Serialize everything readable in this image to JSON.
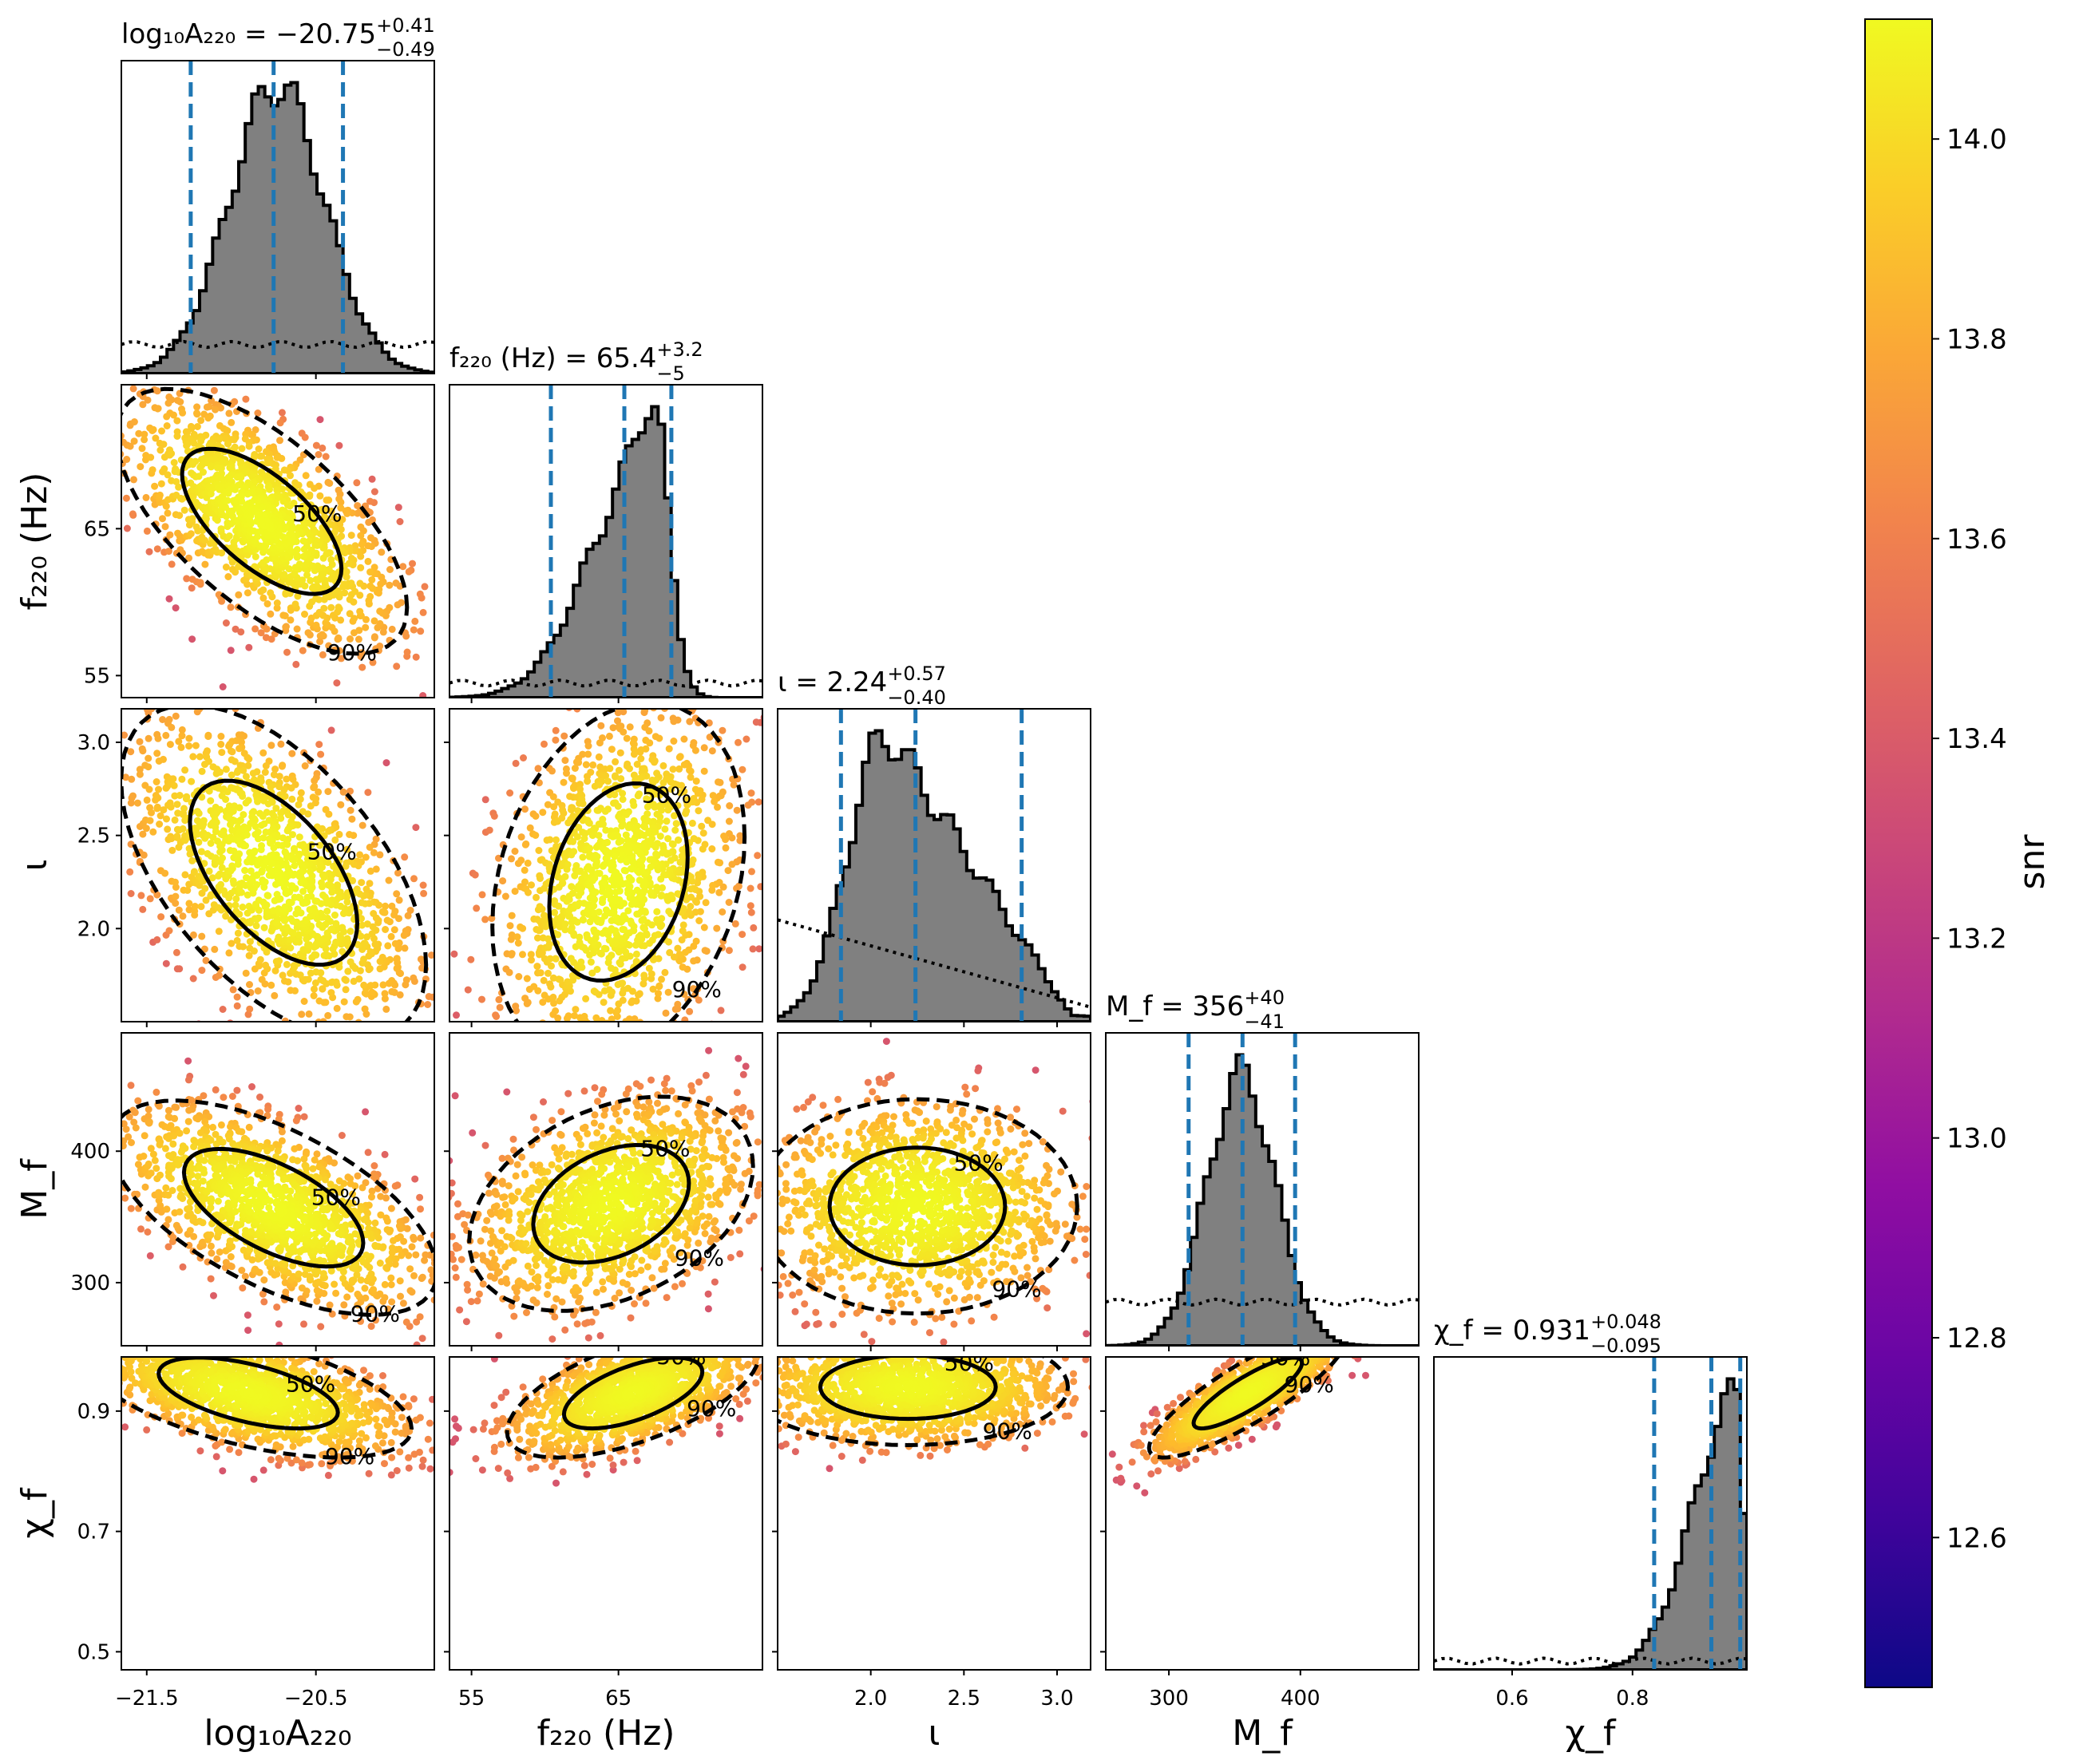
{
  "chart_data": {
    "type": "corner",
    "parameters": [
      {
        "key": "logA",
        "title": "log₁₀A₂₂₀ = −20.75",
        "sup": "+0.41",
        "sub": "−0.49",
        "axis_label": "log₁₀A₂₂₀",
        "range": [
          -21.65,
          -19.8
        ],
        "ticks": [
          -21.5,
          -20.5
        ],
        "tick_labels": [
          "−21.5",
          "−20.5"
        ],
        "median": -20.75,
        "lo": -21.24,
        "hi": -20.34,
        "hist": {
          "kind": "gauss",
          "mu": -20.73,
          "sd": 0.28
        },
        "prior": 0.1
      },
      {
        "key": "f220",
        "title": "f₂₂₀ (Hz) = 65.4",
        "sup": "+3.2",
        "sub": "−5",
        "axis_label": "f₂₂₀ (Hz)",
        "range": [
          53.5,
          74.8
        ],
        "ticks": [
          55,
          65
        ],
        "tick_labels": [
          "55",
          "65"
        ],
        "median": 65.4,
        "lo": 60.4,
        "hi": 68.6,
        "hist": {
          "kind": "f220"
        },
        "prior": 0.05
      },
      {
        "key": "iota",
        "title": "ι = 2.24",
        "sup": "+0.57",
        "sub": "−0.40",
        "axis_label": "ι",
        "range": [
          1.5,
          3.18
        ],
        "ticks": [
          2.0,
          2.5,
          3.0
        ],
        "tick_labels": [
          "2.0",
          "2.5",
          "3.0"
        ],
        "median": 2.24,
        "lo": 1.84,
        "hi": 2.81,
        "hist": {
          "kind": "iota"
        },
        "prior": "decreasing"
      },
      {
        "key": "Mf",
        "title": "M_f = 356",
        "sup": "+40",
        "sub": "−41",
        "axis_label": "M_f",
        "range": [
          252,
          490
        ],
        "ticks": [
          300,
          400
        ],
        "tick_labels": [
          "300",
          "400"
        ],
        "median": 356,
        "lo": 315,
        "hi": 396,
        "hist": {
          "kind": "gauss",
          "mu": 355,
          "sd": 26
        },
        "prior": 0.15
      },
      {
        "key": "chif",
        "title": "χ_f = 0.931",
        "sup": "+0.048",
        "sub": "−0.095",
        "axis_label": "χ_f",
        "range": [
          0.47,
          0.99
        ],
        "ticks": [
          0.6,
          0.8
        ],
        "tick_labels": [
          "0.6",
          "0.8"
        ],
        "median": 0.931,
        "lo": 0.836,
        "hi": 0.979,
        "hist": {
          "kind": "chif"
        },
        "prior": 0.03
      }
    ],
    "row_ticks": {
      "f220": {
        "ticks": [
          55,
          65
        ],
        "labels": [
          "55",
          "65"
        ]
      },
      "iota": {
        "ticks": [
          2.0,
          2.5,
          3.0
        ],
        "labels": [
          "2.0",
          "2.5",
          "3.0"
        ]
      },
      "Mf": {
        "ticks": [
          300,
          400
        ],
        "labels": [
          "300",
          "400"
        ]
      },
      "chif": {
        "ticks": [
          0.5,
          0.7,
          0.9
        ],
        "labels": [
          "0.5",
          "0.7",
          "0.9"
        ]
      }
    },
    "contours": {
      "1-0": {
        "mx": -20.82,
        "my": 65.5,
        "sx": 0.4,
        "sy": 4.2,
        "rho": -0.65,
        "labels": [
          "50%",
          "90%"
        ]
      },
      "2-0": {
        "mx": -20.75,
        "my": 2.3,
        "sx": 0.42,
        "sy": 0.42,
        "rho": -0.55,
        "labels": [
          "50%",
          "90%"
        ]
      },
      "2-1": {
        "mx": 65.0,
        "my": 2.25,
        "sx": 4.0,
        "sy": 0.45,
        "rho": 0.25,
        "labels": [
          "50%",
          "90%"
        ]
      },
      "3-0": {
        "mx": -20.75,
        "my": 357,
        "sx": 0.45,
        "sy": 38,
        "rho": -0.6,
        "labels": [
          "50%",
          "90%"
        ]
      },
      "3-1": {
        "mx": 64.5,
        "my": 360,
        "sx": 4.5,
        "sy": 38,
        "rho": 0.35,
        "labels": [
          "50%",
          "90%"
        ]
      },
      "3-2": {
        "mx": 2.25,
        "my": 358,
        "sx": 0.4,
        "sy": 38,
        "rho": 0.0,
        "labels": [
          "50%",
          "90%"
        ]
      },
      "4-0": {
        "mx": -20.9,
        "my": 0.93,
        "sx": 0.45,
        "sy": 0.05,
        "rho": -0.55,
        "labels": [
          "50%",
          "90%"
        ]
      },
      "4-1": {
        "mx": 66.0,
        "my": 0.93,
        "sx": 4.0,
        "sy": 0.05,
        "rho": 0.6,
        "labels": [
          "50%",
          "90%"
        ]
      },
      "4-2": {
        "mx": 2.2,
        "my": 0.94,
        "sx": 0.4,
        "sy": 0.045,
        "rho": 0.0,
        "labels": [
          "50%",
          "90%"
        ]
      },
      "4-3": {
        "mx": 360,
        "my": 0.93,
        "sx": 35,
        "sy": 0.05,
        "rho": 0.85,
        "labels": [
          "50%",
          "90%"
        ]
      }
    },
    "colorbar": {
      "label": "snr",
      "range": [
        12.45,
        14.12
      ],
      "ticks": [
        12.6,
        12.8,
        13.0,
        13.2,
        13.4,
        13.6,
        13.8,
        14.0
      ],
      "tick_labels": [
        "12.6",
        "12.8",
        "13.0",
        "13.2",
        "13.4",
        "13.6",
        "13.8",
        "14.0"
      ],
      "colormap": "plasma"
    },
    "colors": {
      "hist_fill": "#808080",
      "quantile_line": "#1f77b4",
      "contour": "#000000"
    }
  }
}
